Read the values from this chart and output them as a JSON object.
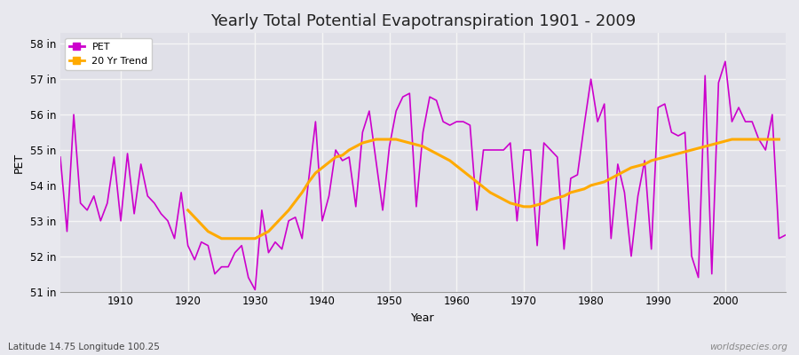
{
  "title": "Yearly Total Potential Evapotranspiration 1901 - 2009",
  "xlabel": "Year",
  "ylabel": "PET",
  "years": [
    1901,
    1902,
    1903,
    1904,
    1905,
    1906,
    1907,
    1908,
    1909,
    1910,
    1911,
    1912,
    1913,
    1914,
    1915,
    1916,
    1917,
    1918,
    1919,
    1920,
    1921,
    1922,
    1923,
    1924,
    1925,
    1926,
    1927,
    1928,
    1929,
    1930,
    1931,
    1932,
    1933,
    1934,
    1935,
    1936,
    1937,
    1938,
    1939,
    1940,
    1941,
    1942,
    1943,
    1944,
    1945,
    1946,
    1947,
    1948,
    1949,
    1950,
    1951,
    1952,
    1953,
    1954,
    1955,
    1956,
    1957,
    1958,
    1959,
    1960,
    1961,
    1962,
    1963,
    1964,
    1965,
    1966,
    1967,
    1968,
    1969,
    1970,
    1971,
    1972,
    1973,
    1974,
    1975,
    1976,
    1977,
    1978,
    1979,
    1980,
    1981,
    1982,
    1983,
    1984,
    1985,
    1986,
    1987,
    1988,
    1989,
    1990,
    1991,
    1992,
    1993,
    1994,
    1995,
    1996,
    1997,
    1998,
    1999,
    2000,
    2001,
    2002,
    2003,
    2004,
    2005,
    2006,
    2007,
    2008,
    2009
  ],
  "pet": [
    54.8,
    52.7,
    56.0,
    53.5,
    53.3,
    53.7,
    53.0,
    53.5,
    54.8,
    53.0,
    54.9,
    53.2,
    54.6,
    53.7,
    53.5,
    53.2,
    53.0,
    52.5,
    53.8,
    52.3,
    51.9,
    52.4,
    52.3,
    51.5,
    51.7,
    51.7,
    52.1,
    52.3,
    51.4,
    51.05,
    53.3,
    52.1,
    52.4,
    52.2,
    53.0,
    53.1,
    52.5,
    54.2,
    55.8,
    53.0,
    53.7,
    55.0,
    54.7,
    54.8,
    53.4,
    55.5,
    56.1,
    54.7,
    53.3,
    55.1,
    56.1,
    56.5,
    56.6,
    53.4,
    55.5,
    56.5,
    56.4,
    55.8,
    55.7,
    55.8,
    55.8,
    55.7,
    53.3,
    55.0,
    55.0,
    55.0,
    55.0,
    55.2,
    53.0,
    55.0,
    55.0,
    52.3,
    55.2,
    55.0,
    54.8,
    52.2,
    54.2,
    54.3,
    55.7,
    57.0,
    55.8,
    56.3,
    52.5,
    54.6,
    53.8,
    52.0,
    53.7,
    54.7,
    52.2,
    56.2,
    56.3,
    55.5,
    55.4,
    55.5,
    52.0,
    51.4,
    57.1,
    51.5,
    56.9,
    57.5,
    55.8,
    56.2,
    55.8,
    55.8,
    55.3,
    55.0,
    56.0,
    52.5,
    52.6
  ],
  "trend": [
    null,
    null,
    null,
    null,
    null,
    null,
    null,
    null,
    null,
    null,
    null,
    null,
    null,
    null,
    null,
    null,
    null,
    null,
    null,
    53.3,
    53.1,
    52.9,
    52.7,
    52.6,
    52.5,
    52.5,
    52.5,
    52.5,
    52.5,
    52.5,
    52.6,
    52.7,
    52.9,
    53.1,
    53.3,
    53.55,
    53.8,
    54.1,
    54.35,
    54.5,
    54.65,
    54.8,
    54.85,
    55.0,
    55.1,
    55.2,
    55.25,
    55.3,
    55.3,
    55.3,
    55.3,
    55.25,
    55.2,
    55.15,
    55.1,
    55.0,
    54.9,
    54.8,
    54.7,
    54.55,
    54.4,
    54.25,
    54.1,
    53.95,
    53.8,
    53.7,
    53.6,
    53.5,
    53.45,
    53.4,
    53.4,
    53.45,
    53.5,
    53.6,
    53.65,
    53.7,
    53.8,
    53.85,
    53.9,
    54.0,
    54.05,
    54.1,
    54.2,
    54.3,
    54.4,
    54.5,
    54.55,
    54.6,
    54.7,
    54.75,
    54.8,
    54.85,
    54.9,
    54.95,
    55.0,
    55.05,
    55.1,
    55.15,
    55.2,
    55.25,
    55.3,
    55.3,
    55.3,
    55.3,
    55.3,
    55.3,
    55.3,
    55.3
  ],
  "pet_color": "#cc00cc",
  "trend_color": "#ffaa00",
  "bg_color": "#e8e8ee",
  "plot_bg_color": "#e0e0e8",
  "grid_color": "#f5f5f5",
  "title_fontsize": 13,
  "axis_label_fontsize": 9,
  "tick_fontsize": 8.5,
  "ylim": [
    51.0,
    58.3
  ],
  "yticks": [
    51,
    52,
    53,
    54,
    55,
    56,
    57,
    58
  ],
  "ytick_labels": [
    "51 in",
    "52 in",
    "53 in",
    "54 in",
    "55 in",
    "56 in",
    "57 in",
    "58 in"
  ],
  "xticks": [
    1910,
    1920,
    1930,
    1940,
    1950,
    1960,
    1970,
    1980,
    1990,
    2000
  ],
  "watermark": "worldspecies.org",
  "footer_left": "Latitude 14.75 Longitude 100.25",
  "legend_labels": [
    "PET",
    "20 Yr Trend"
  ]
}
